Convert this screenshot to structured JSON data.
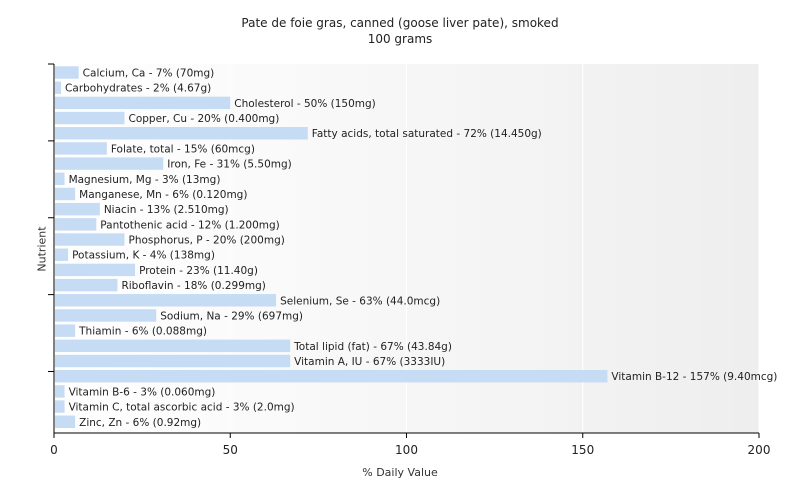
{
  "chart_data": {
    "type": "bar",
    "orientation": "horizontal",
    "title": "Pate de foie gras, canned (goose liver pate), smoked",
    "subtitle": "100 grams",
    "xlabel": "% Daily Value",
    "ylabel": "Nutrient",
    "xlim": [
      0,
      200
    ],
    "xticks": [
      "0",
      "50",
      "100",
      "150",
      "200"
    ],
    "grid": true,
    "bar_color": "#c6dcf5",
    "categories": [
      "Calcium, Ca",
      "Carbohydrates",
      "Cholesterol",
      "Copper, Cu",
      "Fatty acids, total saturated",
      "Folate, total",
      "Iron, Fe",
      "Magnesium, Mg",
      "Manganese, Mn",
      "Niacin",
      "Pantothenic acid",
      "Phosphorus, P",
      "Potassium, K",
      "Protein",
      "Riboflavin",
      "Selenium, Se",
      "Sodium, Na",
      "Thiamin",
      "Total lipid (fat)",
      "Vitamin A, IU",
      "Vitamin B-12",
      "Vitamin B-6",
      "Vitamin C, total ascorbic acid",
      "Zinc, Zn"
    ],
    "values": [
      7,
      2,
      50,
      20,
      72,
      15,
      31,
      3,
      6,
      13,
      12,
      20,
      4,
      23,
      18,
      63,
      29,
      6,
      67,
      67,
      157,
      3,
      3,
      6
    ],
    "labels": [
      "Calcium, Ca - 7% (70mg)",
      "Carbohydrates - 2% (4.67g)",
      "Cholesterol - 50% (150mg)",
      "Copper, Cu - 20% (0.400mg)",
      "Fatty acids, total saturated - 72% (14.450g)",
      "Folate, total - 15% (60mcg)",
      "Iron, Fe - 31% (5.50mg)",
      "Magnesium, Mg - 3% (13mg)",
      "Manganese, Mn - 6% (0.120mg)",
      "Niacin - 13% (2.510mg)",
      "Pantothenic acid - 12% (1.200mg)",
      "Phosphorus, P - 20% (200mg)",
      "Potassium, K - 4% (138mg)",
      "Protein - 23% (11.40g)",
      "Riboflavin - 18% (0.299mg)",
      "Selenium, Se - 63% (44.0mcg)",
      "Sodium, Na - 29% (697mg)",
      "Thiamin - 6% (0.088mg)",
      "Total lipid (fat) - 67% (43.84g)",
      "Vitamin A, IU - 67% (3333IU)",
      "Vitamin B-12 - 157% (9.40mcg)",
      "Vitamin B-6 - 3% (0.060mg)",
      "Vitamin C, total ascorbic acid - 3% (2.0mg)",
      "Zinc, Zn - 6% (0.92mg)"
    ]
  }
}
